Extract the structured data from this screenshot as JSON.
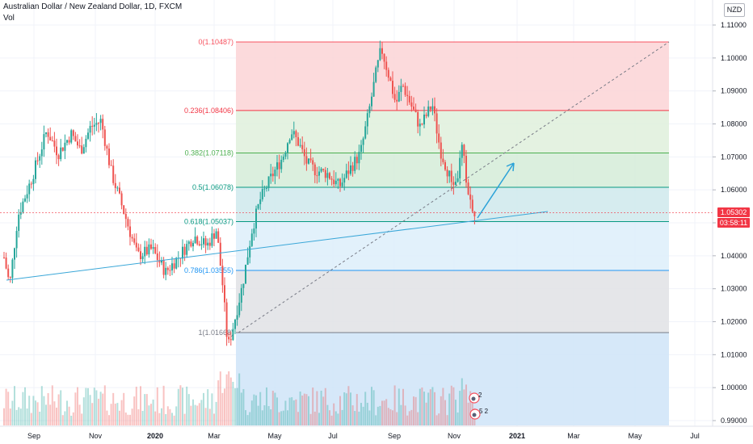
{
  "header": {
    "title": "Australian Dollar / New Zealand Dollar, 1D, FXCM",
    "volume_label": "Vol",
    "currency": "NZD"
  },
  "price_scale": {
    "ticks": [
      "1.11000",
      "1.10000",
      "1.09000",
      "1.08000",
      "1.07000",
      "1.06000",
      "1.05000",
      "1.04000",
      "1.03000",
      "1.02000",
      "1.01000",
      "1.00000",
      "0.99000"
    ],
    "tick_values": [
      1.11,
      1.1,
      1.09,
      1.08,
      1.07,
      1.06,
      1.05,
      1.04,
      1.03,
      1.02,
      1.01,
      1.0,
      0.99
    ]
  },
  "current_price": {
    "value": "1.05302",
    "countdown": "03:58:11",
    "color": "#f23645"
  },
  "time_axis": {
    "labels": [
      "Sep",
      "Nov",
      "2020",
      "Mar",
      "May",
      "Jul",
      "Sep",
      "Nov",
      "2021",
      "Mar",
      "May",
      "Jul"
    ],
    "bold": [
      false,
      false,
      true,
      false,
      false,
      false,
      false,
      false,
      true,
      false,
      false,
      false
    ]
  },
  "fibonacci": {
    "levels": [
      {
        "ratio": 0,
        "price": 1.10487,
        "label": "0(1.10487)",
        "color": "#f7525f",
        "fill": "#fcd4d6"
      },
      {
        "ratio": 0.236,
        "price": 1.08406,
        "label": "0.236(1.08406)",
        "color": "#f23645",
        "fill": "#dff0dc"
      },
      {
        "ratio": 0.382,
        "price": 1.07118,
        "label": "0.382(1.07118)",
        "color": "#4caf50",
        "fill": "#d5ecd8"
      },
      {
        "ratio": 0.5,
        "price": 1.06078,
        "label": "0.5(1.06078)",
        "color": "#089981",
        "fill": "#cfe9ec"
      },
      {
        "ratio": 0.618,
        "price": 1.05037,
        "label": "0.618(1.05037)",
        "color": "#089981",
        "fill": "#ddeefa"
      },
      {
        "ratio": 0.786,
        "price": 1.03555,
        "label": "0.786(1.03555)",
        "color": "#2196f3",
        "fill": "#e1e2e5"
      },
      {
        "ratio": 1,
        "price": 1.01668,
        "label": "1(1.01668)",
        "color": "#787b86",
        "fill": "#cfe4f8"
      }
    ]
  },
  "event_markers": [
    {
      "label": "2"
    },
    {
      "label": "5",
      "sup": "2"
    }
  ],
  "colors": {
    "up": "#26a69a",
    "down": "#ef5350",
    "trend": "#3aa7d8",
    "arrow": "#2ba2d8",
    "grid": "#f0f3fa"
  }
}
